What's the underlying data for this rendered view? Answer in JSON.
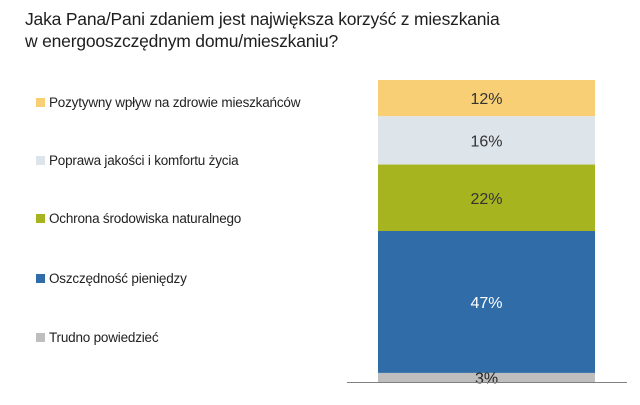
{
  "chart_data": {
    "type": "bar",
    "stacked": true,
    "title": "Jaka Pana/Pani zdaniem jest największa korzyść z mieszkania w energooszczędnym domu/mieszkaniu?",
    "title_lines": [
      "Jaka Pana/Pani zdaniem jest największa korzyść z mieszkania",
      "w energooszczędnym domu/mieszkaniu?"
    ],
    "legend_position": "left",
    "ylim": [
      0,
      100
    ],
    "series": [
      {
        "name": "Pozytywny wpływ na zdrowie mieszkańców",
        "value": 12,
        "label": "12%",
        "color": "#F8CF74",
        "label_color": "#333333"
      },
      {
        "name": "Poprawa jakości i komfortu życia",
        "value": 16,
        "label": "16%",
        "color": "#DDE4EA",
        "label_color": "#333333"
      },
      {
        "name": "Ochrona środowiska naturalnego",
        "value": 22,
        "label": "22%",
        "color": "#A6B420",
        "label_color": "#333333"
      },
      {
        "name": "Oszczędność pieniędzy",
        "value": 47,
        "label": "47%",
        "color": "#2F6CA8",
        "label_color": "#FFFFFF"
      },
      {
        "name": "Trudno powiedzieć",
        "value": 3,
        "label": "3%",
        "color": "#BEBEBE",
        "label_color": "#222222"
      }
    ]
  }
}
